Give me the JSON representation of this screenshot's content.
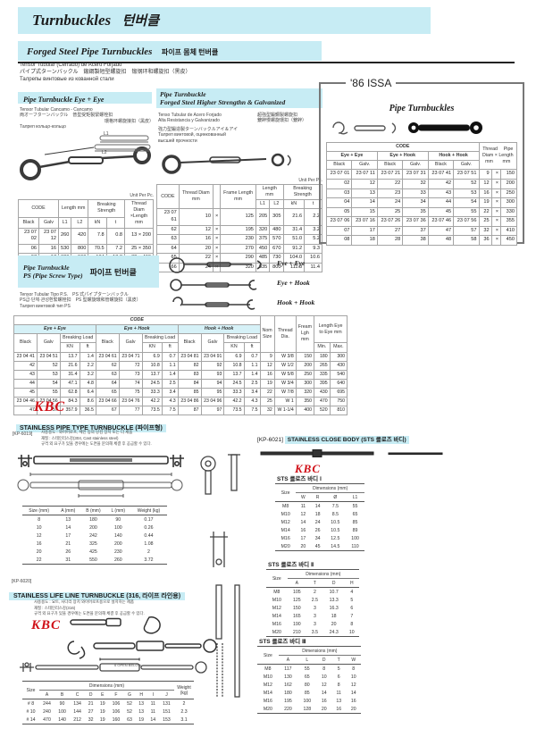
{
  "labels": {
    "code": "CODE",
    "black": "Black",
    "galv": "Galv",
    "galv_dot": "Galv.",
    "unit": "Unit Per Pc.",
    "length_mm": "Length mm",
    "l1": "L1",
    "l2": "L2",
    "breaking_strength": "Breaking Strength",
    "breaking_load": "Breaking Load",
    "kn": "kN",
    "KN": "KN",
    "t": "t",
    "ft": "ft",
    "eye_eye": "Eye + Eye",
    "eye_hook": "Eye + Hook",
    "hook_hook": "Hook + Hook",
    "size": "Size",
    "dimensions": "Dimensions (mm)",
    "weight_kg": "Weight (kg)"
  },
  "header": {
    "title_en": "Turnbuckles",
    "title_ko": "턴버클"
  },
  "forged": {
    "title_en": "Forged Steel Pipe Turnbuckles",
    "title_ko": "파이프 몸체 턴버클",
    "desc": [
      "Tensor Tubular (Cerrado) de Acero Forjado",
      "パイプ式ターンバックル　鍛鋼製短型螺旋扣　锻钢环和螺旋扣（黑皮）",
      "Талрепы винтовые из кованной стали"
    ]
  },
  "eye_eye": {
    "title": "Pipe Turnbuckle  Eye + Eye",
    "desc": [
      "Tensor Tubular Cancamo - Cancamo",
      "両オーフターンバックル　普型受矩製緊螺栓扣",
      "環格环螺旋接扣（黑皮）",
      "Талреп кольцо-кольцо"
    ],
    "thread_header": "Thread Diam ×Length mm",
    "rows": [
      [
        "23 07 02",
        "23 07 12",
        "260",
        "420",
        "7.8",
        "0.8",
        "13 × 200"
      ],
      [
        "06",
        "16",
        "530",
        "800",
        "70.5",
        "7.2",
        "25 × 350"
      ],
      [
        "07",
        "17",
        "620",
        "960",
        "184",
        "18.8",
        "32 × 400"
      ],
      [
        "08",
        "18",
        "720",
        "1,060",
        "284",
        "29",
        "35 × 450"
      ]
    ]
  },
  "higher": {
    "title1": "Pipe Turnbuckle",
    "title2": "Forged Steel Higher Strengthn & Galvanized",
    "desc_left": [
      "Tenso Tubular de Acero Forjado",
      "Alta Resistancia y Galvanizado"
    ],
    "desc_right": [
      "超強型鍛鋼製螺旋扣",
      "鍍鋅慢螺旋環扣（鍍鋅）"
    ],
    "desc_more": [
      "強力型鍛造製ターンバックルアイ＆アイ",
      "Талреп винтовой, оцинкованный",
      "высшей прочности"
    ],
    "thread_diam": "Thread Diam mm",
    "frame_length": "Frame Length mm",
    "rows": [
      [
        "23 07 61",
        "10",
        "×",
        "125",
        "205",
        "305",
        "21.6",
        "2.2"
      ],
      [
        "62",
        "12",
        "×",
        "195",
        "320",
        "480",
        "31.4",
        "3.2"
      ],
      [
        "63",
        "16",
        "×",
        "230",
        "375",
        "570",
        "51.0",
        "5.2"
      ],
      [
        "64",
        "20",
        "×",
        "270",
        "450",
        "670",
        "91.2",
        "9.3"
      ],
      [
        "65",
        "22",
        "×",
        "290",
        "485",
        "730",
        "104.0",
        "10.6"
      ],
      [
        "66",
        "24",
        "×",
        "320",
        "535",
        "800",
        "111.8",
        "11.4"
      ]
    ]
  },
  "issa": {
    "box_title": "'86 ISSA",
    "subtitle": "Pipe Turnbuckles",
    "thread_header1": "Thread　 Pipe",
    "thread_header2": "Diam × Length",
    "thread_header3": "mm　　mm",
    "rows_a": [
      [
        "23 07 01",
        "23 07 11",
        "23 07 21",
        "23 07 31",
        "23 07 41",
        "23 07 51",
        "9",
        "×",
        "150"
      ],
      [
        "02",
        "12",
        "22",
        "32",
        "42",
        "52",
        "12",
        "×",
        "200"
      ],
      [
        "03",
        "13",
        "23",
        "33",
        "43",
        "53",
        "16",
        "×",
        "250"
      ],
      [
        "04",
        "14",
        "24",
        "34",
        "44",
        "54",
        "19",
        "×",
        "300"
      ],
      [
        "05",
        "15",
        "25",
        "35",
        "45",
        "55",
        "22",
        "×",
        "330"
      ]
    ],
    "rows_b": [
      [
        "23 07 06",
        "23 07 16",
        "23 07 26",
        "23 07 36",
        "23 07 46",
        "23 07 56",
        "25",
        "×",
        "355"
      ],
      [
        "07",
        "17",
        "27",
        "37",
        "47",
        "57",
        "32",
        "×",
        "410"
      ],
      [
        "08",
        "18",
        "28",
        "38",
        "48",
        "58",
        "36",
        "×",
        "450"
      ]
    ]
  },
  "ps": {
    "title1": "Pipe Turnbuckle",
    "title2": "PS (Pipe Screw Type)",
    "title_ko": "파이프 턴버클",
    "desc": [
      "Tensor Tubular Tipo P.S.　PS 式パイプターンバックル",
      "PS급·단체·관성환緊螺栓扣　PS 型螺旋環和管螺旋扣（黑皮）",
      "Талреп винтовой тип PS"
    ],
    "diagram_labels": [
      "Eye + Eye",
      "Eye + Hook",
      "Hook + Hook"
    ]
  },
  "ps_table": {
    "nom_size": "Nom Size",
    "thread_dia": "Thread Dia.",
    "fream": "Fream Lgh mm",
    "eye_to_eye": "Length Eye to Eye mm",
    "min": "Min.",
    "max": "Max.",
    "rows_a": [
      [
        "23 04 41",
        "23 04 51",
        "13.7",
        "1.4",
        "23 04 61",
        "23 04 71",
        "6.9",
        "0.7",
        "23 04 81",
        "23 04 91",
        "6.9",
        "0.7",
        "9",
        "W 3/8",
        "150",
        "180",
        "300"
      ],
      [
        "42",
        "52",
        "21.6",
        "2.2",
        "62",
        "72",
        "10.8",
        "1.1",
        "82",
        "92",
        "10.8",
        "1.1",
        "12",
        "W 1/2",
        "200",
        "265",
        "430"
      ],
      [
        "43",
        "53",
        "31.4",
        "3.2",
        "63",
        "73",
        "13.7",
        "1.4",
        "83",
        "93",
        "13.7",
        "1.4",
        "16",
        "W 5/8",
        "250",
        "335",
        "540"
      ],
      [
        "44",
        "54",
        "47.1",
        "4.8",
        "64",
        "74",
        "24.5",
        "2.5",
        "84",
        "94",
        "24.5",
        "2.5",
        "19",
        "W 3/4",
        "300",
        "395",
        "640"
      ],
      [
        "45",
        "55",
        "62.8",
        "6.4",
        "65",
        "75",
        "33.3",
        "3.4",
        "85",
        "95",
        "33.3",
        "3.4",
        "22",
        "W 7/8",
        "320",
        "430",
        "695"
      ]
    ],
    "rows_b": [
      [
        "23 04 46",
        "23 04 56",
        "84.3",
        "8.6",
        "23 04 66",
        "23 04 76",
        "42.2",
        "4.3",
        "23 04 86",
        "23 04 96",
        "42.2",
        "4.3",
        "25",
        "W 1",
        "350",
        "470",
        "750"
      ],
      [
        "47",
        "57",
        "357.9",
        "36.5",
        "67",
        "77",
        "73.5",
        "7.5",
        "87",
        "97",
        "73.5",
        "7.5",
        "32",
        "W 1-1/4",
        "400",
        "520",
        "810"
      ]
    ]
  },
  "kbc": "KBC",
  "pipe_tb": {
    "code": "[KP-6019]",
    "title": "STAINLESS PIPE TYPE TURNBUCKLE (파이프형)",
    "bullets": [
      "사용용도 : 와이어로프, 체인 등의 당김 장치 또는 더 세움",
      "재질 : 스테인리스강(304, Cast stainless steel)",
      "규격 외 요구가 있을 경우에는 도면을 문의해 체결 후 공급할 수 있다."
    ],
    "headers": [
      "Size (mm)",
      "A (mm)",
      "B (mm)",
      "L (mm)",
      "Weight (kg)"
    ],
    "rows": [
      [
        "8",
        "13",
        "180",
        "90",
        "0.17"
      ],
      [
        "10",
        "14",
        "200",
        "100",
        "0.26"
      ],
      [
        "12",
        "17",
        "242",
        "140",
        "0.44"
      ],
      [
        "16",
        "21",
        "325",
        "200",
        "1.08"
      ],
      [
        "20",
        "26",
        "425",
        "230",
        "2"
      ],
      [
        "22",
        "31",
        "550",
        "260",
        "3.72"
      ]
    ]
  },
  "close_body": {
    "code": "[KP-6021]",
    "title": "STAINLESS CLOSE BODY (STS 클로즈 바디)"
  },
  "sts1": {
    "title": "STS 클로즈 바디 Ⅰ",
    "headers": [
      "W",
      "R",
      "Ø",
      "L1"
    ],
    "rows": [
      [
        "M8",
        "11",
        "14",
        "7.5",
        "55"
      ],
      [
        "M10",
        "12",
        "18",
        "8.5",
        "65"
      ],
      [
        "M12",
        "14",
        "24",
        "10.5",
        "85"
      ],
      [
        "M14",
        "16",
        "26",
        "10.5",
        "89"
      ],
      [
        "M16",
        "17",
        "34",
        "12.5",
        "100"
      ],
      [
        "M20",
        "20",
        "45",
        "14.5",
        "110"
      ]
    ]
  },
  "sts2": {
    "title": "STS 클로즈 바디 Ⅱ",
    "headers": [
      "A",
      "T",
      "D",
      "H"
    ],
    "rows": [
      [
        "M8",
        "105",
        "2",
        "10.7",
        "4"
      ],
      [
        "M10",
        "125",
        "2.5",
        "13.3",
        "5"
      ],
      [
        "M12",
        "150",
        "3",
        "16.3",
        "6"
      ],
      [
        "M14",
        "165",
        "3",
        "18",
        "7"
      ],
      [
        "M16",
        "190",
        "3",
        "20",
        "8"
      ],
      [
        "M20",
        "210",
        "3.5",
        "24.3",
        "10"
      ]
    ]
  },
  "sts3": {
    "title": "STS 클로즈 바디 Ⅲ",
    "headers": [
      "A",
      "L",
      "D",
      "T",
      "W"
    ],
    "rows": [
      [
        "M8",
        "117",
        "55",
        "8",
        "5",
        "8"
      ],
      [
        "M10",
        "130",
        "65",
        "10",
        "6",
        "10"
      ],
      [
        "M12",
        "162",
        "80",
        "12",
        "8",
        "12"
      ],
      [
        "M14",
        "180",
        "85",
        "14",
        "11",
        "14"
      ],
      [
        "M16",
        "195",
        "100",
        "16",
        "13",
        "16"
      ],
      [
        "M20",
        "220",
        "128",
        "20",
        "16",
        "20"
      ]
    ]
  },
  "life": {
    "code": "[KP-6020]",
    "title": "STAINLESS LIFE LINE TURNBUCKLE (316, 라이프 라인용)",
    "bullets": [
      "사용용도 : 요트, 사다리 장치 와이어로프용으로 설치하는 제품",
      "재질 : 스테인리스강(316)",
      "규격 외 요구가 있을 경우에는 도면을 문의해 체결 후 공급할 수 있다."
    ],
    "note": "6 OPEN BELOW",
    "dims": [
      "A",
      "B",
      "C",
      "D",
      "E",
      "F",
      "G",
      "H",
      "I",
      "J"
    ],
    "rows": [
      [
        "# 8",
        "244",
        "90",
        "134",
        "21",
        "19",
        "106",
        "52",
        "13",
        "11",
        "131",
        "2"
      ],
      [
        "# 10",
        "240",
        "100",
        "144",
        "27",
        "19",
        "106",
        "52",
        "13",
        "11",
        "151",
        "2.3"
      ],
      [
        "# 14",
        "470",
        "140",
        "212",
        "32",
        "19",
        "160",
        "63",
        "19",
        "14",
        "153",
        "3.1"
      ]
    ]
  }
}
